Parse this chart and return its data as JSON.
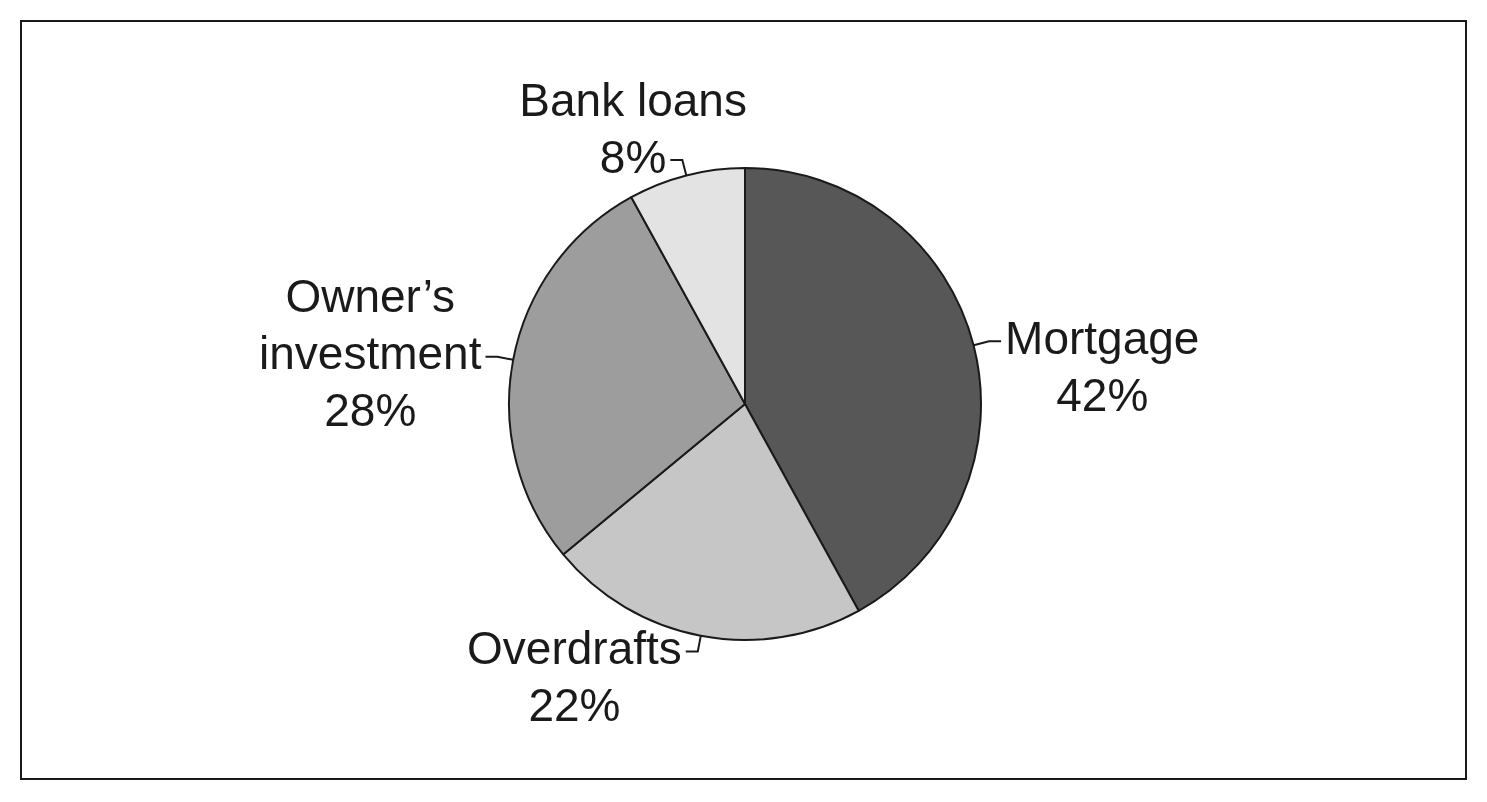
{
  "chart_data": {
    "type": "pie",
    "categories": [
      "Mortgage",
      "Overdrafts",
      "Owner’s investment",
      "Bank loans"
    ],
    "values": [
      42,
      22,
      28,
      8
    ],
    "colors": [
      "#575757",
      "#c6c6c6",
      "#9d9d9d",
      "#e3e3e3"
    ],
    "value_labels": [
      "42%",
      "22%",
      "28%",
      "8%"
    ]
  }
}
